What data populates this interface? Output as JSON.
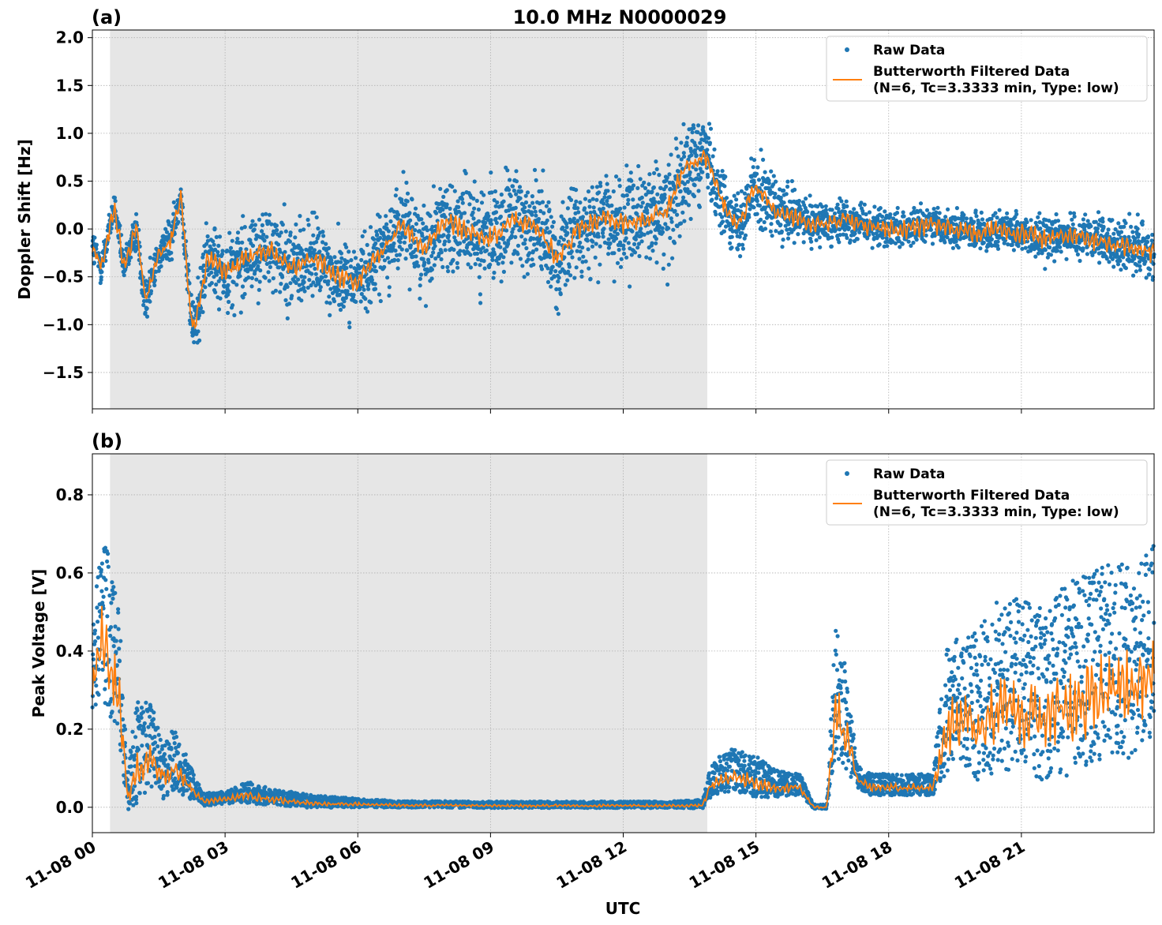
{
  "figure": {
    "title": "10.0 MHz N0000029",
    "xlabel": "UTC"
  },
  "chart_data": [
    {
      "type": "scatter",
      "panel_label": "(a)",
      "title": "10.0 MHz N0000029",
      "xlabel": "",
      "ylabel": "Doppler Shift [Hz]",
      "x_unit": "hours since 11-08 00:00 UTC",
      "xlim": [
        0,
        24
      ],
      "ylim": [
        -1.88,
        2.08
      ],
      "yticks": [
        -1.5,
        -1.0,
        -0.5,
        0.0,
        0.5,
        1.0,
        1.5,
        2.0
      ],
      "ytick_labels": [
        "−1.5",
        "−1.0",
        "−0.5",
        "0.0",
        "0.5",
        "1.0",
        "1.5",
        "2.0"
      ],
      "grid": true,
      "legend_position": "top-right",
      "shaded_region": {
        "x_start": 0.4,
        "x_end": 13.9,
        "color": "#e6e6e6"
      },
      "series": [
        {
          "name": "Raw Data",
          "kind": "scatter",
          "color": "#1f77b4",
          "x": [
            0.0,
            0.2,
            0.5,
            0.7,
            1.0,
            1.2,
            1.5,
            1.8,
            2.0,
            2.2,
            2.3,
            2.6,
            3.0,
            3.5,
            4.0,
            4.5,
            5.0,
            5.5,
            6.0,
            6.5,
            7.0,
            7.5,
            8.0,
            8.5,
            9.0,
            9.5,
            10.0,
            10.5,
            11.0,
            11.5,
            12.0,
            12.5,
            13.0,
            13.3,
            13.5,
            13.9,
            14.2,
            14.6,
            15.0,
            15.5,
            16.0,
            16.5,
            17.0,
            17.5,
            18.0,
            18.5,
            19.0,
            19.5,
            20.0,
            20.5,
            21.0,
            21.5,
            22.0,
            22.5,
            23.0,
            23.5,
            24.0
          ],
          "y_mean": [
            -0.2,
            -0.4,
            0.25,
            -0.4,
            0.0,
            -0.75,
            -0.25,
            -0.1,
            0.4,
            -0.8,
            -1.05,
            -0.3,
            -0.45,
            -0.3,
            -0.2,
            -0.4,
            -0.3,
            -0.5,
            -0.55,
            -0.25,
            0.05,
            -0.2,
            0.1,
            -0.05,
            -0.1,
            0.1,
            0.05,
            -0.3,
            0.0,
            0.1,
            0.05,
            0.1,
            0.2,
            0.55,
            0.7,
            0.75,
            0.3,
            0.05,
            0.45,
            0.15,
            0.1,
            0.05,
            0.1,
            0.05,
            0.0,
            0.0,
            0.05,
            0.0,
            -0.05,
            0.0,
            -0.05,
            -0.1,
            -0.05,
            -0.1,
            -0.15,
            -0.2,
            -0.25
          ],
          "y_spread": [
            0.25,
            0.2,
            0.15,
            0.2,
            0.2,
            0.3,
            0.2,
            0.25,
            0.15,
            0.35,
            0.4,
            0.4,
            0.45,
            0.45,
            0.45,
            0.5,
            0.45,
            0.45,
            0.4,
            0.45,
            0.45,
            0.5,
            0.5,
            0.5,
            0.55,
            0.6,
            0.55,
            0.6,
            0.5,
            0.5,
            0.55,
            0.55,
            0.6,
            0.6,
            0.5,
            0.4,
            0.35,
            0.35,
            0.4,
            0.35,
            0.3,
            0.25,
            0.25,
            0.2,
            0.2,
            0.2,
            0.2,
            0.2,
            0.2,
            0.2,
            0.2,
            0.25,
            0.2,
            0.25,
            0.25,
            0.3,
            0.3
          ]
        },
        {
          "name": "Butterworth Filtered Data\n(N=6, Tc=3.3333 min, Type: low)",
          "kind": "line",
          "color": "#ff7f0e",
          "x": [
            0.0,
            0.2,
            0.5,
            0.7,
            1.0,
            1.2,
            1.5,
            1.8,
            2.0,
            2.2,
            2.3,
            2.6,
            3.0,
            3.5,
            4.0,
            4.5,
            5.0,
            5.5,
            6.0,
            6.5,
            7.0,
            7.5,
            8.0,
            8.5,
            9.0,
            9.5,
            10.0,
            10.5,
            11.0,
            11.5,
            12.0,
            12.5,
            13.0,
            13.3,
            13.5,
            13.9,
            14.2,
            14.6,
            15.0,
            15.5,
            16.0,
            16.5,
            17.0,
            17.5,
            18.0,
            18.5,
            19.0,
            19.5,
            20.0,
            20.5,
            21.0,
            21.5,
            22.0,
            22.5,
            23.0,
            23.5,
            24.0
          ],
          "y": [
            -0.2,
            -0.4,
            0.25,
            -0.4,
            0.0,
            -0.75,
            -0.25,
            -0.1,
            0.4,
            -0.8,
            -1.05,
            -0.3,
            -0.45,
            -0.3,
            -0.2,
            -0.4,
            -0.3,
            -0.5,
            -0.55,
            -0.25,
            0.05,
            -0.2,
            0.1,
            -0.05,
            -0.1,
            0.1,
            0.05,
            -0.3,
            0.0,
            0.1,
            0.05,
            0.1,
            0.2,
            0.55,
            0.7,
            0.75,
            0.3,
            0.05,
            0.45,
            0.15,
            0.1,
            0.05,
            0.1,
            0.05,
            0.0,
            0.0,
            0.05,
            0.0,
            -0.05,
            0.0,
            -0.05,
            -0.1,
            -0.05,
            -0.1,
            -0.15,
            -0.2,
            -0.25
          ]
        }
      ]
    },
    {
      "type": "scatter",
      "panel_label": "(b)",
      "title": "",
      "xlabel": "UTC",
      "ylabel": "Peak Voltage [V]",
      "x_unit": "hours since 11-08 00:00 UTC",
      "xlim": [
        0,
        24
      ],
      "ylim": [
        -0.065,
        0.905
      ],
      "yticks": [
        0.0,
        0.2,
        0.4,
        0.6,
        0.8
      ],
      "ytick_labels": [
        "0.0",
        "0.2",
        "0.4",
        "0.6",
        "0.8"
      ],
      "xticks": [
        0,
        3,
        6,
        9,
        12,
        15,
        18,
        21
      ],
      "xtick_labels": [
        "11-08 00",
        "11-08 03",
        "11-08 06",
        "11-08 09",
        "11-08 12",
        "11-08 15",
        "11-08 18",
        "11-08 21"
      ],
      "grid": true,
      "legend_position": "top-right",
      "shaded_region": {
        "x_start": 0.4,
        "x_end": 13.9,
        "color": "#e6e6e6"
      },
      "series": [
        {
          "name": "Raw Data",
          "kind": "scatter",
          "color": "#1f77b4",
          "x": [
            0.0,
            0.2,
            0.4,
            0.6,
            0.8,
            1.0,
            1.3,
            1.6,
            1.9,
            2.2,
            2.5,
            3.0,
            3.5,
            4.0,
            5.0,
            6.0,
            7.0,
            8.0,
            9.0,
            10.0,
            11.0,
            12.0,
            13.0,
            13.8,
            14.0,
            14.5,
            15.0,
            15.5,
            16.0,
            16.3,
            16.6,
            16.8,
            17.0,
            17.3,
            17.6,
            18.0,
            18.5,
            19.0,
            19.3,
            19.6,
            20.0,
            20.5,
            21.0,
            21.5,
            22.0,
            22.5,
            23.0,
            23.5,
            24.0
          ],
          "y_mean": [
            0.3,
            0.45,
            0.35,
            0.3,
            0.02,
            0.1,
            0.13,
            0.08,
            0.1,
            0.05,
            0.015,
            0.02,
            0.03,
            0.02,
            0.01,
            0.008,
            0.005,
            0.005,
            0.004,
            0.004,
            0.004,
            0.004,
            0.004,
            0.005,
            0.06,
            0.08,
            0.06,
            0.05,
            0.05,
            0.0,
            0.0,
            0.25,
            0.2,
            0.07,
            0.05,
            0.05,
            0.05,
            0.05,
            0.2,
            0.22,
            0.2,
            0.25,
            0.25,
            0.22,
            0.25,
            0.28,
            0.3,
            0.3,
            0.35
          ],
          "y_spread": [
            0.2,
            0.35,
            0.4,
            0.3,
            0.1,
            0.25,
            0.2,
            0.15,
            0.15,
            0.08,
            0.03,
            0.03,
            0.05,
            0.04,
            0.03,
            0.02,
            0.015,
            0.015,
            0.015,
            0.015,
            0.015,
            0.015,
            0.015,
            0.02,
            0.08,
            0.1,
            0.1,
            0.06,
            0.05,
            0.01,
            0.01,
            0.3,
            0.25,
            0.05,
            0.05,
            0.05,
            0.05,
            0.05,
            0.3,
            0.3,
            0.35,
            0.4,
            0.4,
            0.4,
            0.45,
            0.45,
            0.45,
            0.45,
            0.45
          ]
        },
        {
          "name": "Butterworth Filtered Data\n(N=6, Tc=3.3333 min, Type: low)",
          "kind": "line",
          "color": "#ff7f0e",
          "x": [
            0.0,
            0.2,
            0.4,
            0.6,
            0.8,
            1.0,
            1.3,
            1.6,
            1.9,
            2.2,
            2.5,
            3.0,
            3.5,
            4.0,
            5.0,
            6.0,
            7.0,
            8.0,
            9.0,
            10.0,
            11.0,
            12.0,
            13.0,
            13.8,
            14.0,
            14.5,
            15.0,
            15.5,
            16.0,
            16.3,
            16.6,
            16.8,
            17.0,
            17.3,
            17.6,
            18.0,
            18.5,
            19.0,
            19.3,
            19.6,
            20.0,
            20.5,
            21.0,
            21.5,
            22.0,
            22.5,
            23.0,
            23.5,
            24.0
          ],
          "y": [
            0.3,
            0.45,
            0.35,
            0.3,
            0.02,
            0.1,
            0.13,
            0.08,
            0.1,
            0.05,
            0.015,
            0.02,
            0.03,
            0.02,
            0.01,
            0.008,
            0.005,
            0.005,
            0.004,
            0.004,
            0.004,
            0.004,
            0.004,
            0.005,
            0.06,
            0.08,
            0.06,
            0.05,
            0.05,
            0.0,
            0.0,
            0.25,
            0.2,
            0.07,
            0.05,
            0.05,
            0.05,
            0.05,
            0.2,
            0.22,
            0.2,
            0.25,
            0.25,
            0.22,
            0.25,
            0.28,
            0.3,
            0.3,
            0.35
          ]
        }
      ]
    }
  ]
}
